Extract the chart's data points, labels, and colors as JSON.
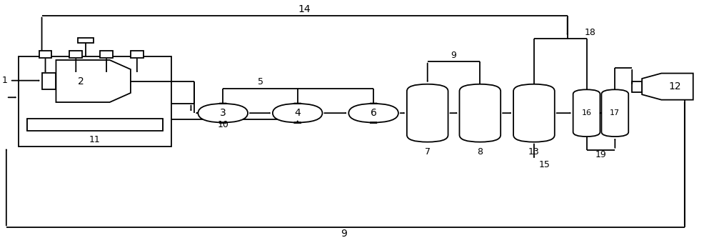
{
  "bg": "#ffffff",
  "lc": "#000000",
  "lw": 1.3,
  "figsize": [
    10.0,
    3.4
  ],
  "dpi": 100
}
